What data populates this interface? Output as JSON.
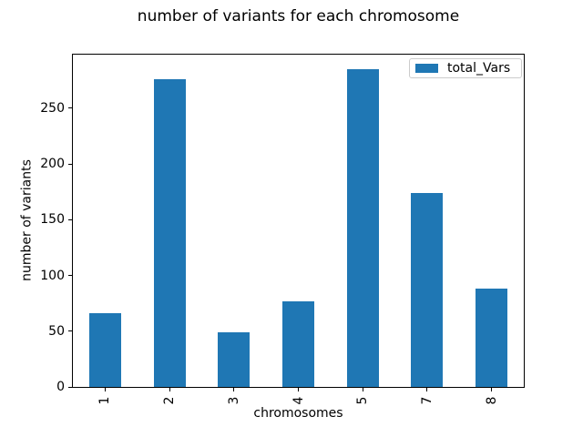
{
  "figure": {
    "background": "#ffffff",
    "frame_color": "#000000",
    "legend_border_color": "#cccccc"
  },
  "chart_data": {
    "type": "bar",
    "title": "number of variants for each chromosome",
    "xlabel": "chromosomes",
    "ylabel": "number of variants",
    "categories": [
      "1",
      "2",
      "3",
      "4",
      "5",
      "7",
      "8"
    ],
    "series": [
      {
        "name": "total_Vars",
        "values": [
          66,
          276,
          49,
          77,
          285,
          174,
          88
        ]
      }
    ],
    "bar_color": "#1f77b4",
    "yticks": [
      0,
      50,
      100,
      150,
      200,
      250
    ],
    "ylim": [
      0,
      298
    ],
    "grid": false,
    "legend": {
      "position": "upper right",
      "entries": [
        "total_Vars"
      ]
    }
  }
}
